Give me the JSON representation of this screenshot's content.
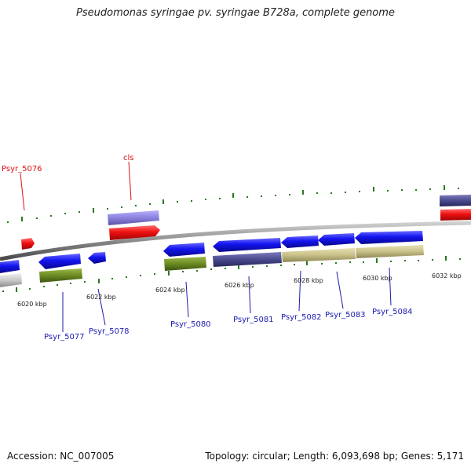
{
  "title": "Pseudomonas syringae pv. syringae B728a, complete genome",
  "footer": {
    "accession": "Accession: NC_007005",
    "summary": "Topology: circular; Length: 6,093,698 bp; Genes: 5,171"
  },
  "colors": {
    "backbone": "#8a8a8a",
    "tick": "#2a7a1e",
    "forward_gene": "#e8101a",
    "reverse_gene": "#1010e6",
    "cds_olive": "#6b8a22",
    "cds_tan": "#c8c088",
    "cds_navy": "#4a4a8e",
    "cds_grey": "#c8c8c8",
    "cds_lavender": "#8a82dd",
    "label_red": "#dd1010",
    "label_blue": "#1a1ab0"
  },
  "kbp_labels": [
    "6020 kbp",
    "6022 kbp",
    "6024 kbp",
    "6026 kbp",
    "6028 kbp",
    "6030 kbp",
    "6032 kbp"
  ],
  "gene_labels": [
    {
      "name": "Psyr_5076",
      "color": "red"
    },
    {
      "name": "cls",
      "color": "red"
    },
    {
      "name": "Psyr_5077",
      "color": "blue"
    },
    {
      "name": "Psyr_5078",
      "color": "blue"
    },
    {
      "name": "Psyr_5080",
      "color": "blue"
    },
    {
      "name": "Psyr_5081",
      "color": "blue"
    },
    {
      "name": "Psyr_5082",
      "color": "blue"
    },
    {
      "name": "Psyr_5083",
      "color": "blue"
    },
    {
      "name": "Psyr_5084",
      "color": "blue"
    }
  ]
}
